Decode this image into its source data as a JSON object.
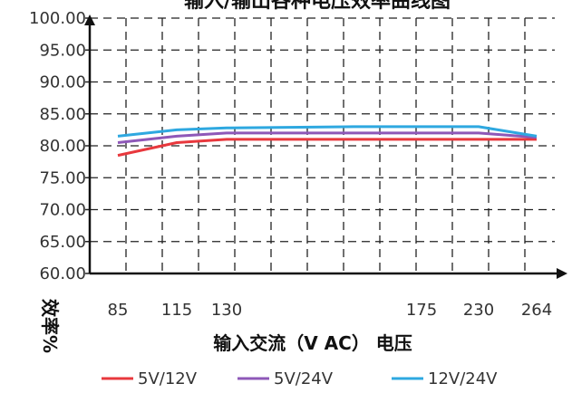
{
  "chart_data": {
    "type": "line",
    "title": "输入/输出各种电压效率曲线图",
    "xlabel": "输入交流（V AC） 电压",
    "ylabel": "效率%",
    "categories": [
      "85",
      "115",
      "130",
      "175",
      "230",
      "264"
    ],
    "x": [
      85,
      115,
      130,
      175,
      230,
      264
    ],
    "yticks": [
      "60.00",
      "65.00",
      "70.00",
      "75.00",
      "80.00",
      "85.00",
      "90.00",
      "95.00",
      "100.00"
    ],
    "ylim": [
      60,
      100
    ],
    "grid": true,
    "legend_position": "bottom",
    "series": [
      {
        "name": "5V/12V",
        "color": "#e8383d",
        "values": [
          78.5,
          80.5,
          81.0,
          81.0,
          81.0,
          81.0
        ]
      },
      {
        "name": "5V/24V",
        "color": "#8e58b8",
        "values": [
          80.5,
          81.5,
          82.0,
          82.0,
          82.0,
          81.3
        ]
      },
      {
        "name": "12V/24V",
        "color": "#2ea8e0",
        "values": [
          81.5,
          82.5,
          82.8,
          83.0,
          83.0,
          81.5
        ]
      }
    ]
  }
}
